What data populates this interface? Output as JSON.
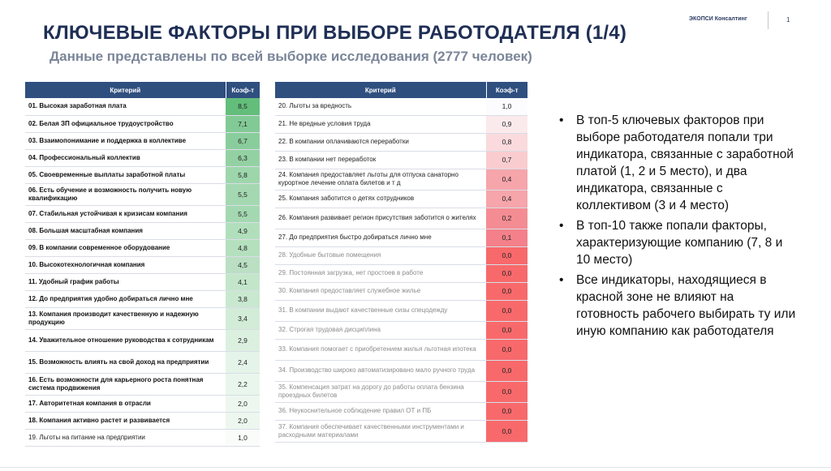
{
  "header": {
    "brand": "ЭКОПСИ Консалтинг",
    "page_number": "1"
  },
  "title": "КЛЮЧЕВЫЕ ФАКТОРЫ ПРИ ВЫБОРЕ РАБОТОДАТЕЛЯ (1/4)",
  "subtitle": "Данные представлены по всей выборке исследования (2777 человек)",
  "table_headers": {
    "criterion": "Критерий",
    "coef": "Коэф-т"
  },
  "left_rows": [
    {
      "label": "01. Высокая заработная плата",
      "value": "8,5",
      "color": "#63be7b",
      "weight": "bold"
    },
    {
      "label": "02. Белая ЗП официальное трудоустройство",
      "value": "7,1",
      "color": "#82ca95",
      "weight": "bold"
    },
    {
      "label": "03. Взаимопонимание и поддержка в коллективе",
      "value": "6,7",
      "color": "#8acd9c",
      "weight": "bold"
    },
    {
      "label": "04. Профессиональный коллектив",
      "value": "6,3",
      "color": "#93d1a3",
      "weight": "bold"
    },
    {
      "label": "05. Своевременные выплаты заработной платы",
      "value": "5,8",
      "color": "#9ed6ac",
      "weight": "bold"
    },
    {
      "label": "06. Есть обучение и возможность получить новую квалификацию",
      "value": "5,5",
      "color": "#a4d8b1",
      "weight": "bold"
    },
    {
      "label": "07. Стабильная устойчивая к кризисам компания",
      "value": "5,5",
      "color": "#a4d8b1",
      "weight": "bold"
    },
    {
      "label": "08. Большая масштабная компания",
      "value": "4,9",
      "color": "#b1dfbc",
      "weight": "bold"
    },
    {
      "label": "09. В компании современное оборудование",
      "value": "4,8",
      "color": "#b4e0be",
      "weight": "bold"
    },
    {
      "label": "10. Высокотехнологичная компания",
      "value": "4,5",
      "color": "#badfc3",
      "weight": "bold"
    },
    {
      "label": "11. Удобный график работы",
      "value": "4,1",
      "color": "#c3e6cb",
      "weight": "bold"
    },
    {
      "label": "12. До предприятия удобно добираться лично мне",
      "value": "3,8",
      "color": "#c9e8d0",
      "weight": "bold"
    },
    {
      "label": "13. Компания производит качественную и надежную продукцию",
      "value": "3,4",
      "color": "#d2ecd8",
      "weight": "bold"
    },
    {
      "label": "14. Уважительное отношение руководства к сотрудникам",
      "value": "2,9",
      "color": "#dcf0e0",
      "weight": "bold"
    },
    {
      "label": "15. Возможность влиять на свой доход на предприятии",
      "value": "2,4",
      "color": "#e5f4e9",
      "weight": "bold"
    },
    {
      "label": "16. Есть возможности для карьерного роста понятная система продвижения",
      "value": "2,2",
      "color": "#e9f6ec",
      "weight": "bold"
    },
    {
      "label": "17. Авторитетная компания в отрасли",
      "value": "2,0",
      "color": "#edf7f0",
      "weight": "bold"
    },
    {
      "label": "18. Компания активно растет и развивается",
      "value": "2,0",
      "color": "#edf7f0",
      "weight": "bold"
    },
    {
      "label": "19. Льготы на питание на предприятии",
      "value": "1,0",
      "color": "#fafcfa",
      "weight": "normal"
    }
  ],
  "right_rows": [
    {
      "label": "20. Льготы за вредность",
      "value": "1,0",
      "color": "#fcfcff",
      "weight": "normal"
    },
    {
      "label": "21. Не вредные условия труда",
      "value": "0,9",
      "color": "#fbeaec",
      "weight": "normal"
    },
    {
      "label": "22. В компании оплачиваются переработки",
      "value": "0,8",
      "color": "#fadadd",
      "weight": "normal"
    },
    {
      "label": "23. В компании нет переработок",
      "value": "0,7",
      "color": "#f9ccd0",
      "weight": "normal"
    },
    {
      "label": "24. Компания предоставляет льготы для отпуска санаторно курортное лечение оплата билетов и т д",
      "value": "0,4",
      "color": "#f6a5ab",
      "weight": "normal"
    },
    {
      "label": "25. Компания заботится о детях сотрудников",
      "value": "0,4",
      "color": "#f6a5ab",
      "weight": "normal"
    },
    {
      "label": "26. Компания развивает регион присутствия заботится о жителях",
      "value": "0,2",
      "color": "#f48c93",
      "weight": "normal"
    },
    {
      "label": "27. До предприятия быстро добираться лично мне",
      "value": "0,1",
      "color": "#f3808a",
      "weight": "normal"
    },
    {
      "label": "28. Удобные бытовые помещения",
      "value": "0,0",
      "color": "#f8696b",
      "weight": "grey"
    },
    {
      "label": "29. Постоянная загрузка, нет простоев в работе",
      "value": "0,0",
      "color": "#f8696b",
      "weight": "grey"
    },
    {
      "label": "30. Компания предоставляет служебное жилье",
      "value": "0,0",
      "color": "#f8696b",
      "weight": "grey"
    },
    {
      "label": "31. В компании выдают качественные сизы спецодежду",
      "value": "0,0",
      "color": "#f8696b",
      "weight": "grey"
    },
    {
      "label": "32. Строгая трудовая дисциплина",
      "value": "0,0",
      "color": "#f8696b",
      "weight": "grey"
    },
    {
      "label": "33. Компания помогает с приобретением жилья льготная ипотека",
      "value": "0,0",
      "color": "#f8696b",
      "weight": "grey"
    },
    {
      "label": "34. Производство широко автоматизировано мало ручного труда",
      "value": "0,0",
      "color": "#f8696b",
      "weight": "grey"
    },
    {
      "label": "35. Компенсация затрат на дорогу до работы оплата бензина проездных билетов",
      "value": "0,0",
      "color": "#f8696b",
      "weight": "grey"
    },
    {
      "label": "36. Неукоснительное соблюдение правил ОТ и ПБ",
      "value": "0,0",
      "color": "#f8696b",
      "weight": "grey"
    },
    {
      "label": "37. Компания обеспечивает качественными инструментами и расходными материалами",
      "value": "0,0",
      "color": "#f8696b",
      "weight": "grey"
    }
  ],
  "bullets": [
    "В топ-5 ключевых факторов при выборе работодателя попали три индикатора, связанные с заработной платой (1, 2 и 5 место), и два индикатора, связанные с коллективом (3 и 4 место)",
    "В топ-10 также попали факторы, характеризующие компанию (7, 8 и 10 место)",
    "Все индикаторы, находящиеся в красной зоне не влияют на готовность рабочего выбирать ту или иную компанию как работодателя"
  ]
}
